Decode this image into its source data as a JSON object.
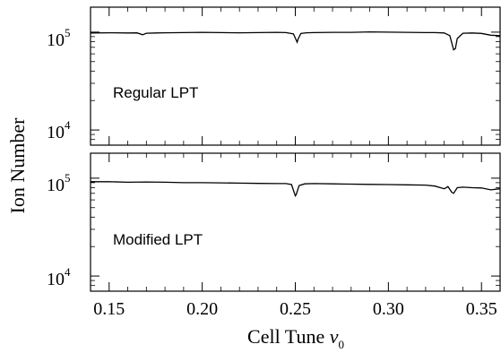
{
  "chart_data": {
    "type": "line",
    "xlabel": "Cell Tune ",
    "xlabel_symbol": "ν",
    "xlabel_subscript": "0",
    "ylabel": "Ion Number",
    "xlim": [
      0.14,
      0.36
    ],
    "x_ticks": [
      {
        "value": 0.15,
        "label": "0.15"
      },
      {
        "value": 0.2,
        "label": "0.20"
      },
      {
        "value": 0.25,
        "label": "0.25"
      },
      {
        "value": 0.3,
        "label": "0.30"
      },
      {
        "value": 0.35,
        "label": "0.35"
      }
    ],
    "y_scale": "log",
    "panels": [
      {
        "label": "Regular LPT",
        "ylim": [
          7000,
          180000
        ],
        "y_ticks": [
          {
            "value": 10000,
            "base": "10",
            "exp": "4"
          },
          {
            "value": 100000,
            "base": "10",
            "exp": "5"
          }
        ],
        "series": [
          {
            "x": [
              0.14,
              0.15,
              0.16,
              0.165,
              0.168,
              0.17,
              0.175,
              0.18,
              0.19,
              0.2,
              0.21,
              0.22,
              0.23,
              0.24,
              0.245,
              0.249,
              0.251,
              0.2515,
              0.253,
              0.256,
              0.26,
              0.27,
              0.28,
              0.29,
              0.3,
              0.31,
              0.32,
              0.325,
              0.33,
              0.333,
              0.335,
              0.336,
              0.337,
              0.34,
              0.345,
              0.35,
              0.355,
              0.36
            ],
            "y": [
              98000,
              98500,
              98000,
              98200,
              94000,
              97500,
              98000,
              98500,
              99000,
              99500,
              99000,
              98500,
              99000,
              99500,
              98800,
              96000,
              79000,
              85000,
              97000,
              98500,
              99000,
              99500,
              99500,
              100500,
              100000,
              99500,
              99000,
              99000,
              98000,
              92000,
              66000,
              68000,
              86000,
              97500,
              98000,
              97000,
              93000,
              92000
            ]
          }
        ]
      },
      {
        "label": "Modified LPT",
        "ylim": [
          7000,
          180000
        ],
        "y_ticks": [
          {
            "value": 10000,
            "base": "10",
            "exp": "4"
          },
          {
            "value": 100000,
            "base": "10",
            "exp": "5"
          }
        ],
        "series": [
          {
            "x": [
              0.14,
              0.15,
              0.16,
              0.17,
              0.18,
              0.19,
              0.2,
              0.21,
              0.22,
              0.23,
              0.24,
              0.245,
              0.248,
              0.25,
              0.2505,
              0.252,
              0.255,
              0.26,
              0.27,
              0.28,
              0.29,
              0.3,
              0.31,
              0.32,
              0.325,
              0.328,
              0.33,
              0.332,
              0.334,
              0.335,
              0.337,
              0.34,
              0.345,
              0.35,
              0.355,
              0.36
            ],
            "y": [
              92000,
              92000,
              91000,
              91500,
              91000,
              90000,
              90000,
              89500,
              89000,
              88500,
              88000,
              88000,
              86000,
              66000,
              68000,
              84000,
              87500,
              88000,
              87500,
              87000,
              86500,
              86000,
              85500,
              85000,
              83000,
              80000,
              78000,
              82000,
              72000,
              70000,
              80000,
              81000,
              80000,
              79500,
              76000,
              78000
            ]
          }
        ]
      }
    ]
  }
}
